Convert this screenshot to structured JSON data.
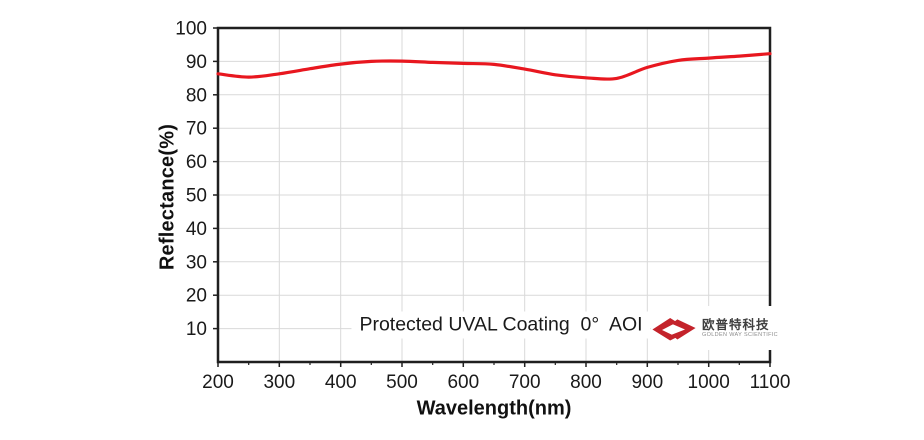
{
  "chart_data": {
    "type": "line",
    "title": "Protected UVAL Coating  0°  AOI",
    "xlabel": "Wavelength(nm)",
    "ylabel": "Reflectance(%)",
    "xlim": [
      200,
      1100
    ],
    "ylim": [
      0,
      100
    ],
    "x_ticks": [
      200,
      300,
      400,
      500,
      600,
      700,
      800,
      900,
      1000,
      1100
    ],
    "x_minor_ticks": [
      250,
      350,
      450,
      550,
      650,
      750,
      850,
      950,
      1050
    ],
    "y_ticks": [
      10,
      20,
      30,
      40,
      50,
      60,
      70,
      80,
      90,
      100
    ],
    "grid": true,
    "legend": "none",
    "series": [
      {
        "name": "Reflectance",
        "color": "#e8171f",
        "x": [
          200,
          250,
          300,
          350,
          400,
          450,
          500,
          550,
          600,
          650,
          700,
          750,
          800,
          850,
          900,
          950,
          1000,
          1050,
          1100
        ],
        "y": [
          86.3,
          85.3,
          86.3,
          87.8,
          89.2,
          90.0,
          90.1,
          89.7,
          89.4,
          89.1,
          87.7,
          86.0,
          85.1,
          84.9,
          88.2,
          90.3,
          91.0,
          91.6,
          92.3
        ]
      }
    ]
  },
  "logo": {
    "icon": "double-chevron-arrow-icon",
    "name_cn": "欧普特科技",
    "name_en": "GOLDEN WAY SCIENTIFIC",
    "mark_color": "#c4232b",
    "text_color": "#3f3f3f",
    "subtext_color": "#8c8c8c"
  },
  "watermark": {
    "icon": "brand-logo-watermark",
    "color": "#e8171f",
    "opacity": 0.08
  },
  "style": {
    "grid_color": "#d9d9d9",
    "axis_color": "#1f1f1f",
    "tick_label_color": "#1a1a1a",
    "tick_font_size": 19,
    "background": "#ffffff"
  }
}
